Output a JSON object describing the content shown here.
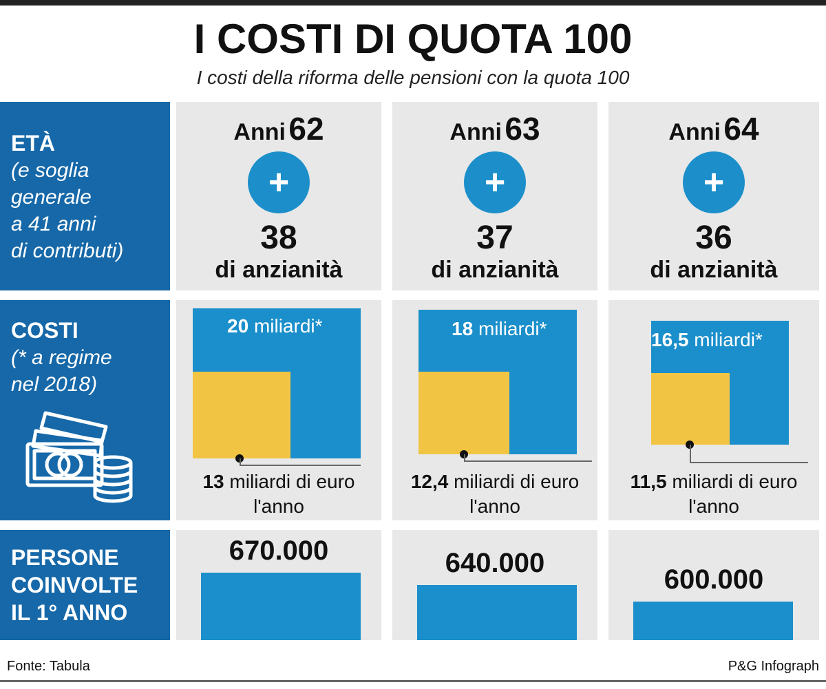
{
  "title": "I COSTI DI QUOTA 100",
  "subtitle": "I costi della riforma delle pensioni con la quota 100",
  "row_labels": {
    "eta": {
      "head": "ETÀ",
      "sub_lines": [
        "(e soglia",
        "generale",
        "a 41 anni",
        "di contributi)"
      ]
    },
    "costi": {
      "head": "COSTI",
      "sub_lines": [
        "(* a regime",
        "nel 2018)"
      ],
      "icon": "banknotes-coins-icon"
    },
    "persone": {
      "head_lines": [
        "PERSONE",
        "COINVOLTE",
        "IL 1° ANNO"
      ]
    }
  },
  "columns": [
    {
      "age_word": "Anni",
      "age_num": "62",
      "plus": "+",
      "years": "38",
      "years_label": "di anzianità",
      "cost_total_num": "20",
      "cost_total_unit": "miliardi*",
      "cost_annual_num": "13",
      "cost_annual_unit": "miliardi di euro",
      "cost_annual_line2": "l'anno",
      "people": "670.000"
    },
    {
      "age_word": "Anni",
      "age_num": "63",
      "plus": "+",
      "years": "37",
      "years_label": "di anzianità",
      "cost_total_num": "18",
      "cost_total_unit": "miliardi*",
      "cost_annual_num": "12,4",
      "cost_annual_unit": "miliardi di euro",
      "cost_annual_line2": "l'anno",
      "people": "640.000"
    },
    {
      "age_word": "Anni",
      "age_num": "64",
      "plus": "+",
      "years": "36",
      "years_label": "di anzianità",
      "cost_total_num": "16,5",
      "cost_total_unit": "miliardi*",
      "cost_annual_num": "11,5",
      "cost_annual_unit": "miliardi di euro",
      "cost_annual_line2": "l'anno",
      "people": "600.000"
    }
  ],
  "footer": {
    "source": "Fonte: Tabula",
    "credit": "P&G Infograph"
  },
  "colors": {
    "label_panel": "#1668a8",
    "blue": "#1b8fcb",
    "yellow": "#f2c443",
    "cell_bg": "#e8e8e8"
  },
  "chart_data": {
    "type": "bar",
    "categories": [
      "Anni 62",
      "Anni 63",
      "Anni 64"
    ],
    "series": [
      {
        "values": [
          20,
          18,
          16.5
        ]
      },
      {
        "values": [
          13,
          12.4,
          11.5
        ]
      },
      {
        "values": [
          670000,
          640000,
          600000
        ]
      }
    ],
    "title": "I COSTI DI QUOTA 100"
  }
}
